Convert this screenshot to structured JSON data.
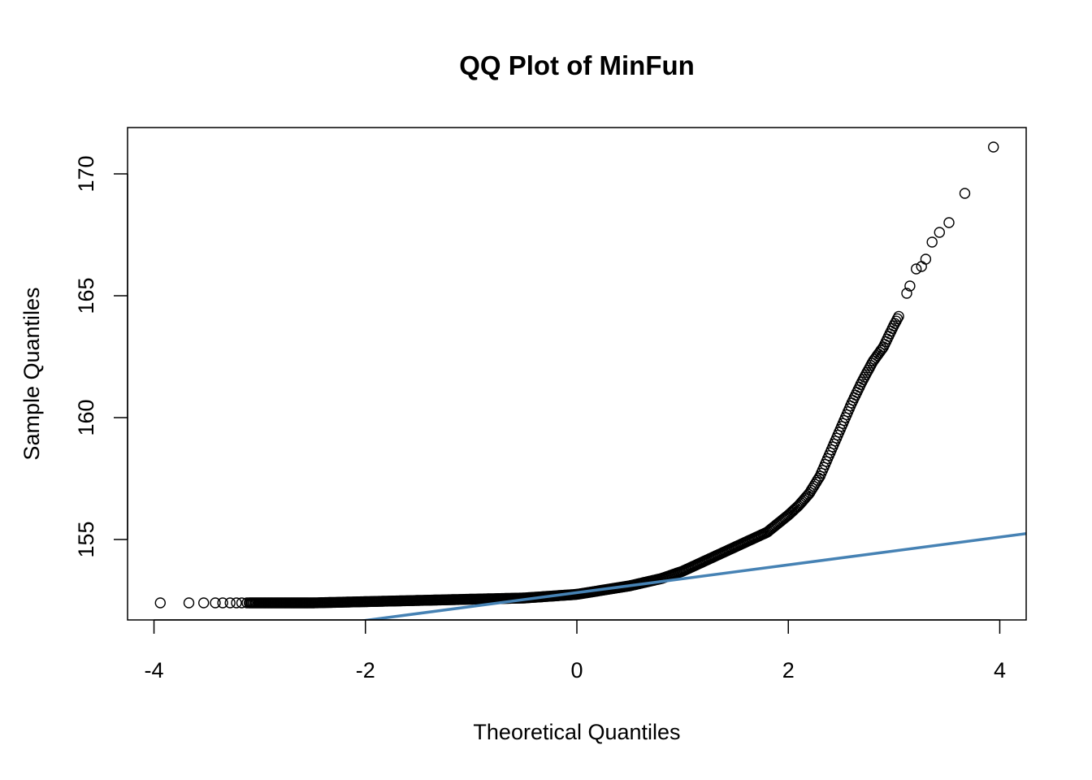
{
  "chart_data": {
    "type": "scatter",
    "title": "QQ Plot of MinFun",
    "xlabel": "Theoretical Quantiles",
    "ylabel": "Sample Quantiles",
    "xlim": [
      -4.25,
      4.25
    ],
    "ylim": [
      151.7,
      171.9
    ],
    "x_ticks": [
      -4,
      -2,
      0,
      2,
      4
    ],
    "x_tick_labels": [
      "-4",
      "-2",
      "0",
      "2",
      "4"
    ],
    "y_ticks": [
      155,
      160,
      165,
      170
    ],
    "y_tick_labels": [
      "155",
      "160",
      "165",
      "170"
    ],
    "grid": false,
    "legend": "none",
    "point_style": "open-circle",
    "point_color": "#000000",
    "reference_line": {
      "color": "#4682B4",
      "intercept": 152.82,
      "slope": 0.57
    },
    "outlier_points": {
      "x": [
        -3.94,
        -3.67,
        -3.53,
        -3.42,
        -3.35,
        -3.28,
        -3.22,
        -3.17,
        -3.12,
        3.12,
        3.15,
        3.21,
        3.26,
        3.3,
        3.36,
        3.43,
        3.52,
        3.67,
        3.94
      ],
      "y": [
        152.4,
        152.4,
        152.4,
        152.4,
        152.4,
        152.4,
        152.4,
        152.4,
        152.4,
        165.1,
        165.4,
        166.1,
        166.2,
        166.5,
        167.2,
        167.6,
        168.0,
        169.2,
        171.1
      ]
    },
    "body_curve": {
      "x": [
        -3.1,
        -2.5,
        -2.0,
        -1.5,
        -1.0,
        -0.5,
        0.0,
        0.5,
        0.8,
        1.0,
        1.2,
        1.4,
        1.6,
        1.8,
        1.9,
        2.0,
        2.1,
        2.2,
        2.3,
        2.4,
        2.5,
        2.6,
        2.7,
        2.8,
        2.9,
        3.0,
        3.05
      ],
      "y": [
        152.4,
        152.4,
        152.45,
        152.5,
        152.55,
        152.6,
        152.75,
        153.1,
        153.4,
        153.7,
        154.1,
        154.5,
        154.9,
        155.3,
        155.65,
        156.0,
        156.4,
        156.9,
        157.6,
        158.6,
        159.6,
        160.6,
        161.5,
        162.3,
        162.9,
        163.8,
        164.2
      ]
    }
  }
}
